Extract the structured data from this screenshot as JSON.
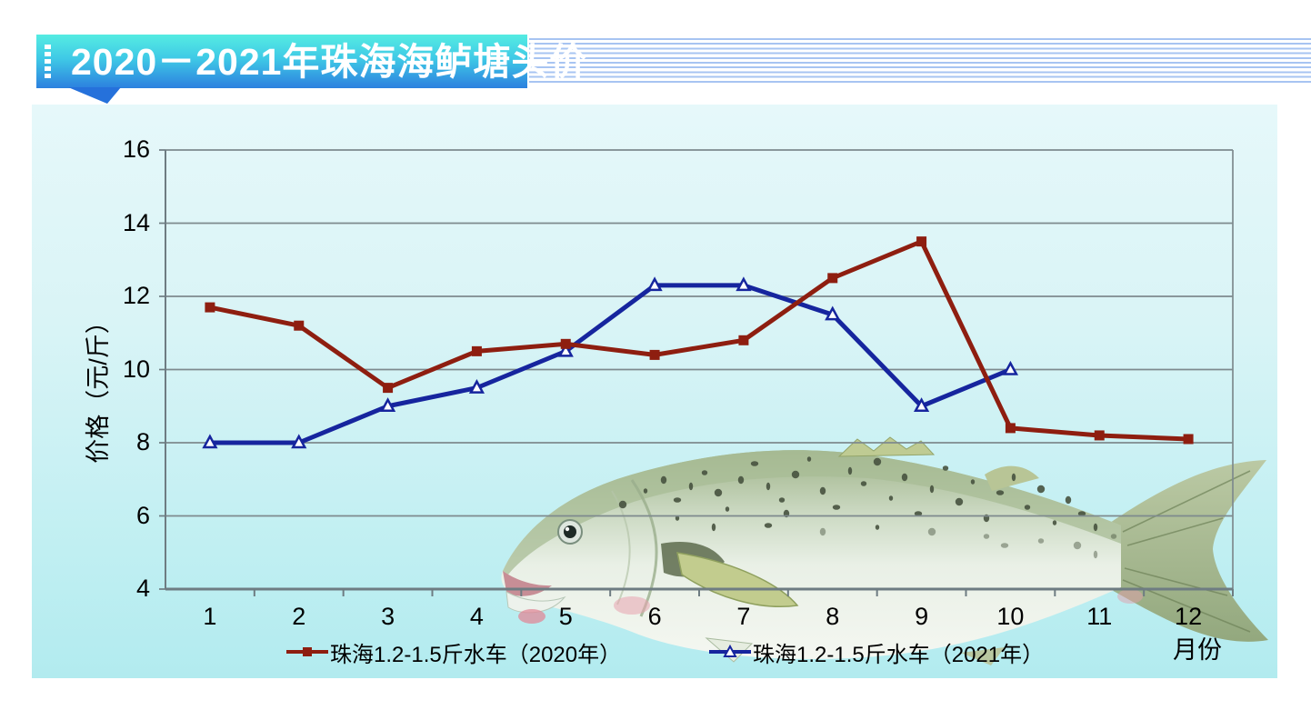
{
  "banner": {
    "title": "2020－2021年珠海海鲈塘头价"
  },
  "chart_data": {
    "type": "line",
    "title": "2020-2021年珠海海鲈塘头价",
    "categories": [
      "1",
      "2",
      "3",
      "4",
      "5",
      "6",
      "7",
      "8",
      "9",
      "10",
      "11",
      "12"
    ],
    "xlabel": "月份",
    "ylabel": "价格（元/斤）",
    "ylim": [
      4,
      16
    ],
    "ytick_step": 2,
    "grid": true,
    "legend_position": "bottom",
    "series": [
      {
        "name": "珠海1.2-1.5斤水车（2020年）",
        "color": "#8e1e10",
        "marker": "filled-square",
        "values": [
          11.7,
          11.2,
          9.5,
          10.5,
          10.7,
          10.4,
          10.8,
          12.5,
          13.5,
          8.4,
          8.2,
          8.1
        ]
      },
      {
        "name": "珠海1.2-1.5斤水车（2021年）",
        "color": "#16259e",
        "marker": "open-triangle",
        "values": [
          8.0,
          8.0,
          9.0,
          9.5,
          10.5,
          12.3,
          12.3,
          11.5,
          9.0,
          10.0
        ]
      }
    ]
  },
  "decor": {
    "fish_image": "sea-bass-photo"
  }
}
